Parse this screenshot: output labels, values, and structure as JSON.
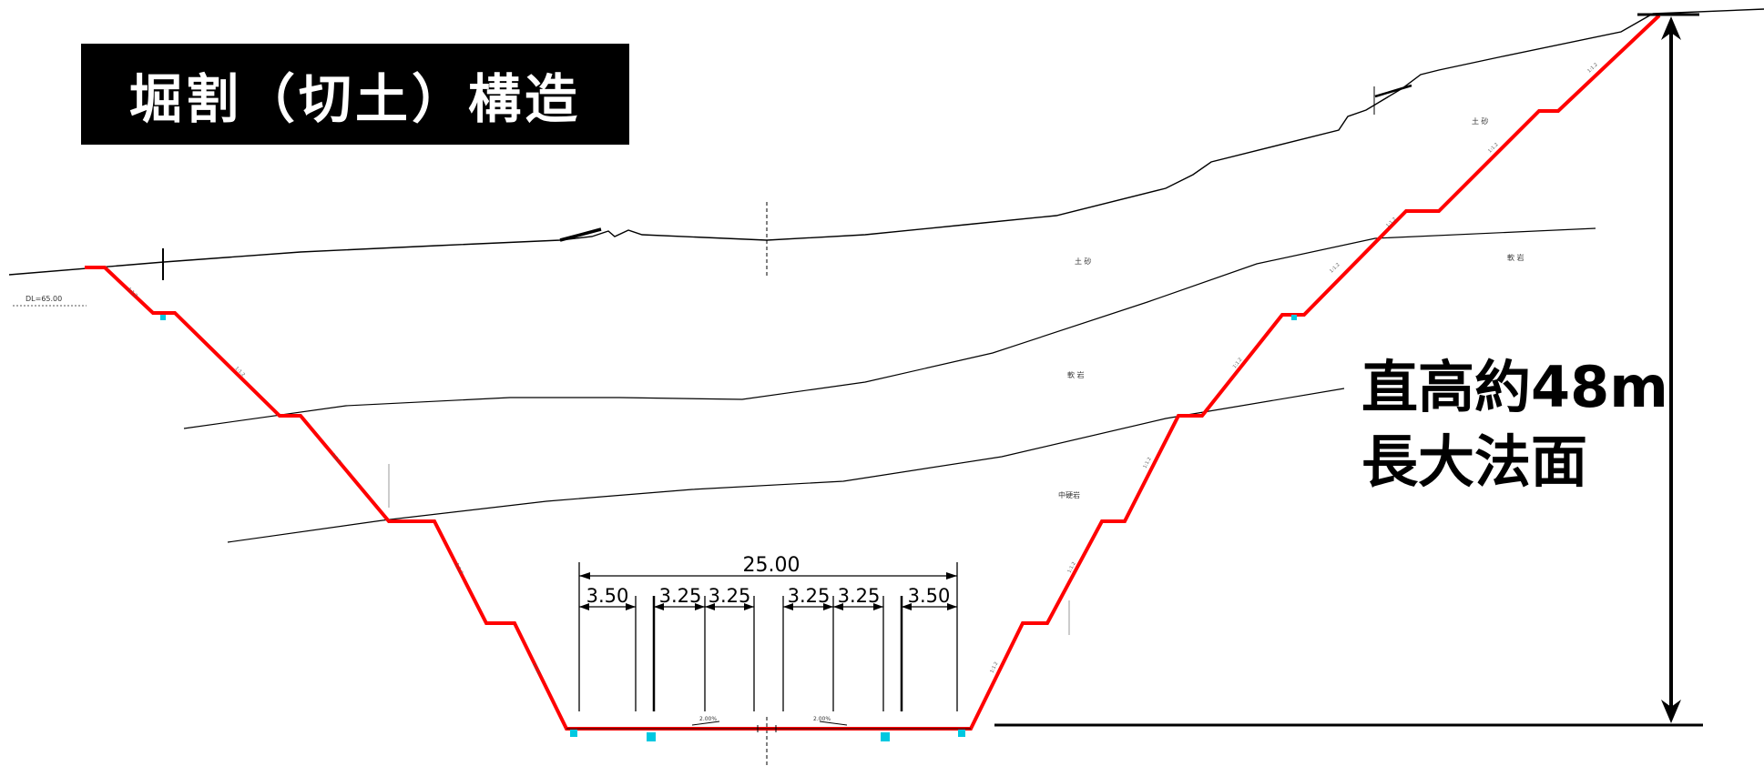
{
  "title": "堀割（切土）構造",
  "height_label": {
    "line1": "直高約48m",
    "line2": "長大法面"
  },
  "datum_label": "DL=65.00",
  "dimensions": {
    "total_width": "25.00",
    "lanes": [
      "3.50",
      "3.25",
      "3.25",
      "3.25",
      "3.25",
      "3.50"
    ]
  },
  "geology_labels": {
    "sand_upper_right": "土 砂",
    "sand_middle": "土 砂",
    "soft_rock_right": "軟 岩",
    "soft_rock_middle": "軟 岩",
    "medium_hard_rock": "中硬岩"
  },
  "slope_ratio_label": "1:1.2",
  "crossfall_label": "2.00%",
  "colors": {
    "cut_line": "#ff0000",
    "ground_line": "#000000",
    "drain_marker": "#00c8e0"
  }
}
